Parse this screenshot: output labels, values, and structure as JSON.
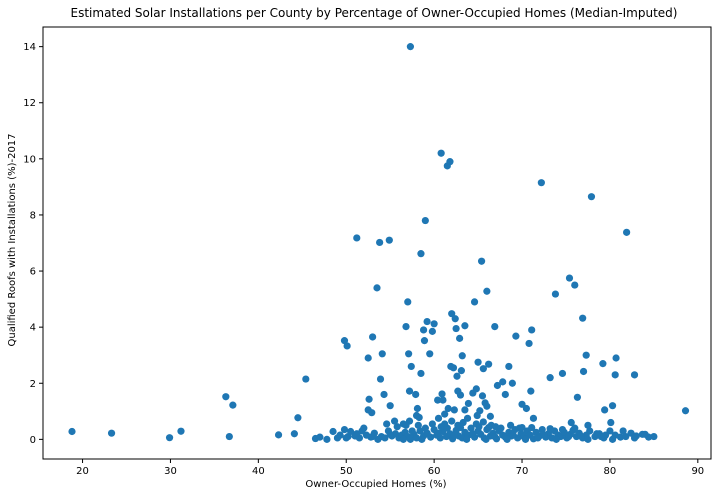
{
  "chart_data": {
    "type": "scatter",
    "title": "Estimated Solar Installations per County by Percentage of Owner-Occupied Homes (Median-Imputed)",
    "xlabel": "Owner-Occupied Homes (%)",
    "ylabel": "Qualified Roofs with Installations (%)-2017",
    "xlim": [
      15.5,
      91.5
    ],
    "ylim": [
      -0.7,
      14.7
    ],
    "xticks": [
      "20",
      "30",
      "40",
      "50",
      "60",
      "70",
      "80",
      "90"
    ],
    "yticks": [
      "0",
      "2",
      "4",
      "6",
      "8",
      "10",
      "12",
      "14"
    ],
    "grid": false,
    "marker_color": "#1f77b4",
    "series": [
      {
        "points": [
          [
            18.8,
            0.28
          ],
          [
            23.3,
            0.22
          ],
          [
            29.9,
            0.06
          ],
          [
            31.2,
            0.29
          ],
          [
            36.3,
            1.52
          ],
          [
            37.1,
            1.22
          ],
          [
            36.7,
            0.1
          ],
          [
            42.3,
            0.16
          ],
          [
            44.1,
            0.2
          ],
          [
            44.5,
            0.77
          ],
          [
            45.4,
            2.15
          ],
          [
            46.5,
            0.03
          ],
          [
            47.0,
            0.08
          ],
          [
            47.8,
            0.0
          ],
          [
            48.5,
            0.28
          ],
          [
            49.0,
            0.05
          ],
          [
            49.3,
            0.15
          ],
          [
            49.8,
            0.35
          ],
          [
            50.2,
            0.1
          ],
          [
            50.5,
            0.28
          ],
          [
            51.0,
            0.12
          ],
          [
            51.5,
            0.05
          ],
          [
            51.8,
            0.3
          ],
          [
            52.3,
            0.15
          ],
          [
            52.8,
            0.08
          ],
          [
            53.2,
            0.22
          ],
          [
            53.6,
            0.0
          ],
          [
            54.0,
            0.1
          ],
          [
            54.4,
            0.05
          ],
          [
            54.8,
            0.3
          ],
          [
            55.2,
            0.12
          ],
          [
            55.6,
            0.2
          ],
          [
            56.0,
            0.05
          ],
          [
            56.3,
            0.15
          ],
          [
            56.7,
            0.25
          ],
          [
            57.0,
            0.1
          ],
          [
            57.3,
            0.0
          ],
          [
            57.7,
            0.18
          ],
          [
            58.0,
            0.05
          ],
          [
            58.4,
            0.3
          ],
          [
            58.8,
            0.12
          ],
          [
            59.2,
            0.22
          ],
          [
            59.6,
            0.08
          ],
          [
            60.0,
            0.35
          ],
          [
            60.3,
            0.15
          ],
          [
            60.7,
            0.05
          ],
          [
            61.0,
            0.28
          ],
          [
            61.4,
            0.1
          ],
          [
            61.8,
            0.2
          ],
          [
            62.1,
            0.02
          ],
          [
            62.5,
            0.32
          ],
          [
            62.8,
            0.12
          ],
          [
            63.2,
            0.05
          ],
          [
            63.5,
            0.25
          ],
          [
            63.9,
            0.15
          ],
          [
            64.2,
            0.4
          ],
          [
            64.6,
            0.08
          ],
          [
            65.0,
            0.3
          ],
          [
            65.3,
            0.18
          ],
          [
            65.7,
            0.05
          ],
          [
            66.0,
            0.35
          ],
          [
            66.4,
            0.12
          ],
          [
            66.7,
            0.22
          ],
          [
            67.1,
            0.02
          ],
          [
            67.4,
            0.3
          ],
          [
            67.8,
            0.15
          ],
          [
            68.1,
            0.08
          ],
          [
            68.5,
            0.25
          ],
          [
            68.8,
            0.12
          ],
          [
            69.2,
            0.35
          ],
          [
            69.5,
            0.05
          ],
          [
            69.9,
            0.2
          ],
          [
            70.2,
            0.1
          ],
          [
            70.6,
            0.3
          ],
          [
            70.9,
            0.15
          ],
          [
            71.3,
            0.02
          ],
          [
            71.6,
            0.25
          ],
          [
            72.0,
            0.12
          ],
          [
            72.3,
            0.35
          ],
          [
            72.7,
            0.08
          ],
          [
            73.0,
            0.2
          ],
          [
            73.4,
            0.05
          ],
          [
            73.7,
            0.3
          ],
          [
            74.1,
            0.15
          ],
          [
            74.4,
            0.1
          ],
          [
            74.8,
            0.25
          ],
          [
            75.1,
            0.05
          ],
          [
            75.5,
            0.18
          ],
          [
            75.8,
            0.32
          ],
          [
            76.2,
            0.1
          ],
          [
            76.5,
            0.22
          ],
          [
            76.9,
            0.05
          ],
          [
            77.3,
            0.15
          ],
          [
            77.7,
            0.3
          ],
          [
            78.3,
            0.1
          ],
          [
            78.8,
            0.2
          ],
          [
            79.3,
            0.05
          ],
          [
            80.0,
            0.3
          ],
          [
            80.6,
            0.15
          ],
          [
            81.2,
            0.08
          ],
          [
            81.8,
            0.1
          ],
          [
            82.4,
            0.22
          ],
          [
            83.0,
            0.12
          ],
          [
            83.7,
            0.18
          ],
          [
            84.4,
            0.08
          ],
          [
            85.0,
            0.1
          ],
          [
            50.0,
            0.05
          ],
          [
            51.2,
            0.2
          ],
          [
            52.0,
            0.4
          ],
          [
            53.0,
            0.1
          ],
          [
            55.0,
            0.18
          ],
          [
            56.5,
            0.0
          ],
          [
            57.5,
            0.3
          ],
          [
            58.6,
            0.0
          ],
          [
            59.0,
            0.4
          ],
          [
            60.5,
            0.22
          ],
          [
            61.5,
            0.4
          ],
          [
            62.3,
            0.15
          ],
          [
            63.0,
            0.42
          ],
          [
            63.7,
            0.0
          ],
          [
            64.4,
            0.2
          ],
          [
            65.1,
            0.45
          ],
          [
            65.9,
            0.0
          ],
          [
            66.2,
            0.42
          ],
          [
            66.9,
            0.1
          ],
          [
            67.6,
            0.4
          ],
          [
            68.3,
            0.0
          ],
          [
            69.0,
            0.15
          ],
          [
            69.7,
            0.4
          ],
          [
            70.4,
            0.0
          ],
          [
            71.1,
            0.42
          ],
          [
            71.8,
            0.05
          ],
          [
            72.5,
            0.15
          ],
          [
            73.2,
            0.38
          ],
          [
            73.9,
            0.0
          ],
          [
            74.6,
            0.35
          ],
          [
            75.3,
            0.1
          ],
          [
            76.0,
            0.4
          ],
          [
            76.7,
            0.12
          ],
          [
            77.5,
            0.0
          ],
          [
            78.5,
            0.2
          ],
          [
            79.5,
            0.15
          ],
          [
            80.3,
            0.0
          ],
          [
            81.5,
            0.3
          ],
          [
            82.8,
            0.05
          ],
          [
            84.0,
            0.18
          ],
          [
            79.0,
            0.1
          ],
          [
            62.7,
            0.5
          ],
          [
            64.8,
            0.55
          ],
          [
            66.5,
            0.5
          ],
          [
            61.2,
            0.55
          ],
          [
            60.8,
            0.45
          ],
          [
            63.3,
            0.6
          ],
          [
            67.0,
            0.45
          ],
          [
            68.7,
            0.5
          ],
          [
            70.0,
            0.42
          ],
          [
            58.2,
            0.5
          ],
          [
            59.8,
            0.55
          ],
          [
            57.2,
            0.65
          ],
          [
            56.8,
            0.5
          ],
          [
            55.8,
            0.45
          ],
          [
            54.6,
            0.55
          ],
          [
            65.6,
            0.62
          ],
          [
            62.0,
            0.65
          ],
          [
            63.8,
            0.75
          ],
          [
            49.8,
            3.52
          ],
          [
            50.1,
            3.33
          ],
          [
            51.2,
            7.18
          ],
          [
            52.5,
            2.9
          ],
          [
            52.6,
            1.43
          ],
          [
            53.0,
            3.65
          ],
          [
            53.5,
            5.4
          ],
          [
            53.8,
            7.02
          ],
          [
            53.9,
            2.15
          ],
          [
            54.1,
            3.05
          ],
          [
            54.3,
            1.6
          ],
          [
            54.9,
            7.1
          ],
          [
            55.0,
            1.2
          ],
          [
            52.5,
            1.05
          ],
          [
            52.9,
            0.95
          ],
          [
            55.5,
            0.65
          ],
          [
            56.5,
            0.55
          ],
          [
            56.8,
            4.02
          ],
          [
            57.0,
            4.9
          ],
          [
            57.1,
            3.05
          ],
          [
            57.2,
            1.72
          ],
          [
            57.4,
            2.6
          ],
          [
            57.3,
            14.0
          ],
          [
            57.9,
            1.6
          ],
          [
            58.0,
            0.85
          ],
          [
            58.1,
            1.1
          ],
          [
            58.3,
            0.78
          ],
          [
            58.5,
            6.62
          ],
          [
            58.5,
            2.35
          ],
          [
            58.8,
            3.9
          ],
          [
            58.9,
            3.52
          ],
          [
            59.0,
            7.8
          ],
          [
            59.2,
            4.2
          ],
          [
            59.5,
            3.05
          ],
          [
            59.8,
            3.85
          ],
          [
            60.0,
            4.12
          ],
          [
            60.4,
            1.4
          ],
          [
            60.5,
            0.75
          ],
          [
            60.8,
            10.2
          ],
          [
            60.9,
            1.62
          ],
          [
            61.0,
            1.4
          ],
          [
            61.2,
            0.9
          ],
          [
            61.5,
            9.75
          ],
          [
            61.6,
            1.1
          ],
          [
            61.8,
            9.9
          ],
          [
            61.9,
            2.6
          ],
          [
            62.0,
            4.48
          ],
          [
            62.2,
            2.55
          ],
          [
            62.3,
            1.05
          ],
          [
            62.4,
            4.3
          ],
          [
            62.5,
            3.95
          ],
          [
            62.6,
            2.25
          ],
          [
            62.7,
            1.72
          ],
          [
            62.9,
            3.6
          ],
          [
            63.0,
            1.58
          ],
          [
            63.1,
            2.45
          ],
          [
            63.2,
            2.98
          ],
          [
            63.5,
            1.05
          ],
          [
            63.5,
            4.05
          ],
          [
            63.9,
            1.28
          ],
          [
            64.4,
            1.65
          ],
          [
            64.6,
            4.9
          ],
          [
            64.8,
            1.8
          ],
          [
            64.9,
            0.85
          ],
          [
            65.0,
            2.75
          ],
          [
            65.2,
            1.02
          ],
          [
            65.4,
            6.35
          ],
          [
            65.5,
            1.55
          ],
          [
            65.6,
            2.52
          ],
          [
            65.8,
            1.3
          ],
          [
            66.0,
            5.28
          ],
          [
            66.0,
            1.18
          ],
          [
            66.2,
            2.68
          ],
          [
            66.4,
            0.82
          ],
          [
            66.9,
            4.02
          ],
          [
            67.2,
            1.92
          ],
          [
            67.8,
            2.05
          ],
          [
            68.1,
            1.6
          ],
          [
            68.5,
            2.6
          ],
          [
            68.9,
            2.0
          ],
          [
            69.3,
            3.68
          ],
          [
            70.0,
            1.25
          ],
          [
            70.5,
            1.1
          ],
          [
            70.8,
            3.42
          ],
          [
            71.0,
            1.72
          ],
          [
            71.1,
            3.9
          ],
          [
            71.3,
            0.75
          ],
          [
            72.2,
            9.15
          ],
          [
            73.2,
            2.2
          ],
          [
            73.8,
            5.18
          ],
          [
            74.6,
            2.35
          ],
          [
            75.4,
            5.75
          ],
          [
            75.6,
            0.6
          ],
          [
            76.0,
            5.5
          ],
          [
            76.3,
            1.5
          ],
          [
            76.9,
            4.32
          ],
          [
            77.0,
            2.42
          ],
          [
            77.3,
            3.0
          ],
          [
            77.5,
            0.5
          ],
          [
            77.9,
            8.65
          ],
          [
            79.2,
            2.7
          ],
          [
            79.4,
            1.05
          ],
          [
            80.1,
            0.6
          ],
          [
            80.3,
            1.2
          ],
          [
            80.6,
            2.3
          ],
          [
            80.7,
            2.9
          ],
          [
            81.9,
            7.38
          ],
          [
            82.8,
            2.3
          ],
          [
            88.6,
            1.02
          ]
        ]
      }
    ]
  }
}
